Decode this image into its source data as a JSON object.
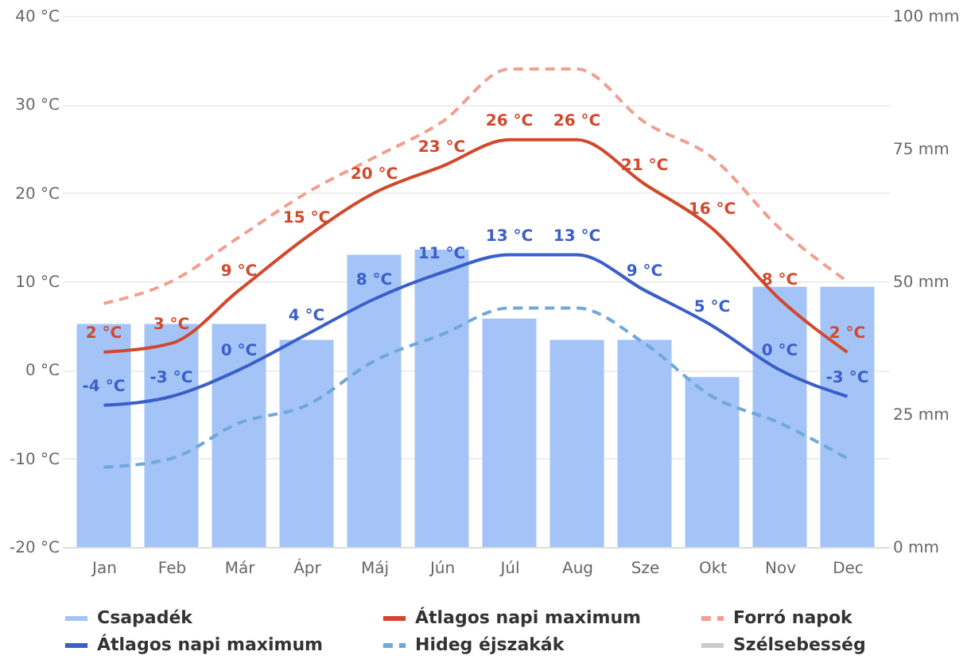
{
  "chart_data": {
    "type": "line",
    "categories": [
      "Jan",
      "Feb",
      "Már",
      "Ápr",
      "Máj",
      "Jún",
      "Júl",
      "Aug",
      "Sze",
      "Okt",
      "Nov",
      "Dec"
    ],
    "series": [
      {
        "name": "Csapadék",
        "type": "bar",
        "axis": "y2",
        "color": "#a4c4f7",
        "values": [
          42,
          42,
          42,
          39,
          55,
          56,
          43,
          39,
          39,
          32,
          49,
          49
        ]
      },
      {
        "name": "Átlagos napi maximum",
        "color": "#d2482b",
        "line_style": "solid",
        "values": [
          2,
          3,
          9,
          15,
          20,
          23,
          26,
          26,
          21,
          16,
          8,
          2
        ],
        "value_labels": [
          "2 °C",
          "3 °C",
          "9 °C",
          "15 °C",
          "20 °C",
          "23 °C",
          "26 °C",
          "26 °C",
          "21 °C",
          "16 °C",
          "8 °C",
          "2 °C"
        ]
      },
      {
        "name": "Forró napok",
        "color": "#f0a090",
        "line_style": "dashed",
        "values": [
          7.5,
          10,
          15,
          20,
          24,
          28,
          34,
          34,
          28,
          24,
          16,
          10
        ]
      },
      {
        "name": "Átlagos napi maximum",
        "color": "#3a5fc8",
        "line_style": "solid",
        "values": [
          -4,
          -3,
          0,
          4,
          8,
          11,
          13,
          13,
          9,
          5,
          0,
          -3
        ],
        "value_labels": [
          "-4 °C",
          "-3 °C",
          "0 °C",
          "4 °C",
          "8 °C",
          "11 °C",
          "13 °C",
          "13 °C",
          "9 °C",
          "5 °C",
          "0 °C",
          "-3 °C"
        ]
      },
      {
        "name": "Hideg éjszakák",
        "color": "#6fa8dc",
        "line_style": "dashed",
        "values": [
          -11,
          -10,
          -6,
          -4,
          1,
          4,
          7,
          7,
          3,
          -3,
          -6,
          -10
        ]
      },
      {
        "name": "Szélsebesség",
        "color": "#cccccc",
        "line_style": "solid",
        "values": [
          null,
          null,
          null,
          null,
          null,
          null,
          null,
          null,
          null,
          null,
          null,
          null
        ]
      }
    ],
    "ylim": [
      -20,
      40
    ],
    "yticks": [
      {
        "value": -20,
        "label": "-20 °C"
      },
      {
        "value": -10,
        "label": "-10 °C"
      },
      {
        "value": 0,
        "label": "0 °C"
      },
      {
        "value": 10,
        "label": "10 °C"
      },
      {
        "value": 20,
        "label": "20 °C"
      },
      {
        "value": 30,
        "label": "30 °C"
      },
      {
        "value": 40,
        "label": "40 °C"
      }
    ],
    "y2lim": [
      0,
      100
    ],
    "y2ticks": [
      {
        "value": 0,
        "label": "0 mm"
      },
      {
        "value": 25,
        "label": "25 mm"
      },
      {
        "value": 50,
        "label": "50 mm"
      },
      {
        "value": 75,
        "label": "75 mm"
      },
      {
        "value": 100,
        "label": "100 mm"
      }
    ],
    "grid": "y",
    "legend": "bottom"
  }
}
